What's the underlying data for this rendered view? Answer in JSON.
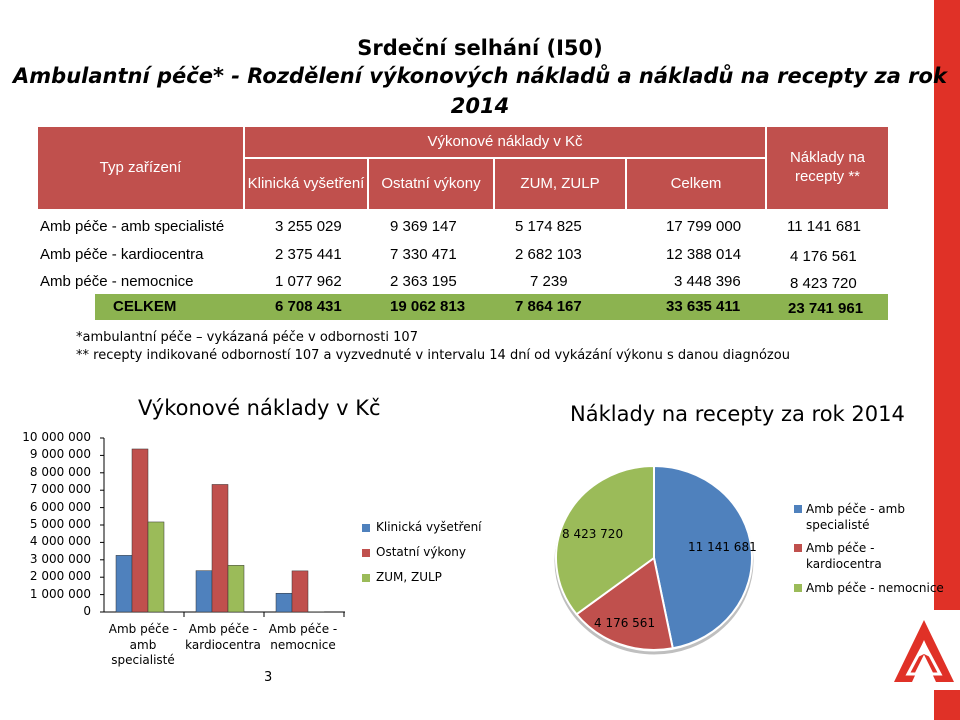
{
  "slide": {
    "title_line1": "Srdeční selhání (I50)",
    "title_line2": "Ambulantní péče* - Rozdělení výkonových nákladů a nákladů na recepty za rok",
    "title_line3": "2014",
    "page_number": "3",
    "accent_color": "#e03127"
  },
  "table": {
    "headers": {
      "type": "Typ zařízení",
      "group": "Výkonové náklady v Kč",
      "clinical": "Klinická vyšetření",
      "other": "Ostatní výkony",
      "zum": "ZUM, ZULP",
      "total": "Celkem",
      "prescription": "Náklady na recepty **"
    },
    "rows": [
      {
        "type": "Amb péče - amb specialisté",
        "clinical": "3 255 029",
        "other": "9 369 147",
        "zum": "5 174 825",
        "total": "17 799 000",
        "prescription": "11 141 681"
      },
      {
        "type": "Amb péče - kardiocentra",
        "clinical": "2 375 441",
        "other": "7 330 471",
        "zum": "2 682 103",
        "total": "12 388 014",
        "prescription": "4 176 561"
      },
      {
        "type": "Amb péče - nemocnice",
        "clinical": "1 077 962",
        "other": "2 363 195",
        "zum": "7 239",
        "total": "3 448 396",
        "prescription": "8 423 720"
      }
    ],
    "total": {
      "type": "CELKEM",
      "clinical": "6 708 431",
      "other": "19 062 813",
      "zum": "7 864 167",
      "total": "33 635 411",
      "prescription": "23 741 961"
    },
    "header_color": "#c0504d",
    "total_color": "#8cb350"
  },
  "notes": {
    "note1": "*ambulantní péče – vykázaná péče v odbornosti 107",
    "note2": "** recepty indikované odborností 107 a vyzvednuté v intervalu 14 dní od vykázání výkonu s danou diagnózou"
  },
  "chart_data": [
    {
      "type": "bar",
      "title": "Výkonové náklady v Kč",
      "categories": [
        [
          "Amb péče -",
          "amb",
          "specialisté"
        ],
        [
          "Amb péče -",
          "kardiocentra"
        ],
        [
          "Amb péče -",
          "nemocnice"
        ]
      ],
      "series": [
        {
          "name": "Klinická vyšetření",
          "color": "#4f81bd",
          "values": [
            3255029,
            2375441,
            1077962
          ]
        },
        {
          "name": "Ostatní výkony",
          "color": "#c0504d",
          "values": [
            9369147,
            7330471,
            2363195
          ]
        },
        {
          "name": "ZUM, ZULP",
          "color": "#9bbb59",
          "values": [
            5174825,
            2682103,
            7239
          ]
        }
      ],
      "yticks": [
        "0",
        "1 000 000",
        "2 000 000",
        "3 000 000",
        "4 000 000",
        "5 000 000",
        "6 000 000",
        "7 000 000",
        "8 000 000",
        "9 000 000",
        "10 000 000"
      ],
      "ylim": [
        0,
        10000000
      ],
      "legend_position": "right"
    },
    {
      "type": "pie",
      "title": "Náklady na recepty za rok 2014",
      "labels": [
        "Amb péče - amb specialisté",
        "Amb péče - kardiocentra",
        "Amb péče - nemocnice"
      ],
      "values": [
        11141681,
        4176561,
        8423720
      ],
      "value_labels": [
        "11 141 681",
        "4 176 561",
        "8 423 720"
      ],
      "colors": [
        "#4f81bd",
        "#c0504d",
        "#9bbb59"
      ],
      "legend_position": "right"
    }
  ]
}
